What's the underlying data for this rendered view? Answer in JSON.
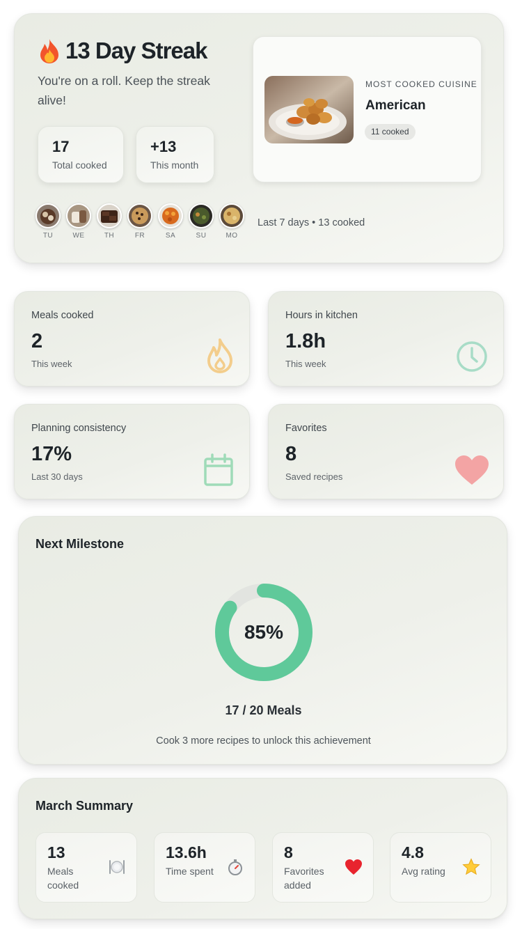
{
  "streak": {
    "title": "13 Day Streak",
    "subtitle": "You're on a roll. Keep the streak alive!",
    "stats": [
      {
        "value": "17",
        "label": "Total cooked"
      },
      {
        "value": "+13",
        "label": "This month"
      }
    ],
    "cuisine": {
      "kicker": "MOST COOKED CUISINE",
      "name": "American",
      "badge": "11 cooked"
    },
    "days": [
      {
        "label": "TU",
        "icon": "dessert-photo"
      },
      {
        "label": "WE",
        "icon": "drink-photo"
      },
      {
        "label": "TH",
        "icon": "brownie-photo"
      },
      {
        "label": "FR",
        "icon": "cookie-photo"
      },
      {
        "label": "SA",
        "icon": "pasta-photo"
      },
      {
        "label": "SU",
        "icon": "greens-photo"
      },
      {
        "label": "MO",
        "icon": "noodle-photo"
      }
    ],
    "days_caption": "Last 7 days • 13 cooked"
  },
  "metrics": [
    {
      "title": "Meals cooked",
      "value": "2",
      "sub": "This week",
      "icon": "flame-icon",
      "color": "#f3cd8c"
    },
    {
      "title": "Hours in kitchen",
      "value": "1.8h",
      "sub": "This week",
      "icon": "clock-icon",
      "color": "#a8dcc7"
    },
    {
      "title": "Planning consistency",
      "value": "17%",
      "sub": "Last 30 days",
      "icon": "calendar-icon",
      "color": "#9fdbb8"
    },
    {
      "title": "Favorites",
      "value": "8",
      "sub": "Saved recipes",
      "icon": "heart-icon",
      "color": "#f3a4a4"
    }
  ],
  "milestone": {
    "title": "Next Milestone",
    "percent": 85,
    "percent_label": "85%",
    "count_label": "17 / 20 Meals",
    "hint": "Cook 3 more recipes to unlock this achievement",
    "ring_color": "#5fc99a",
    "track_color": "#e2e4e0"
  },
  "summary": {
    "title": "March Summary",
    "items": [
      {
        "value": "13",
        "label": "Meals cooked",
        "icon": "plate-icon"
      },
      {
        "value": "13.6h",
        "label": "Time spent",
        "icon": "stopwatch-icon"
      },
      {
        "value": "8",
        "label": "Favorites added",
        "icon": "heart-icon"
      },
      {
        "value": "4.8",
        "label": "Avg rating",
        "icon": "star-icon"
      }
    ]
  }
}
